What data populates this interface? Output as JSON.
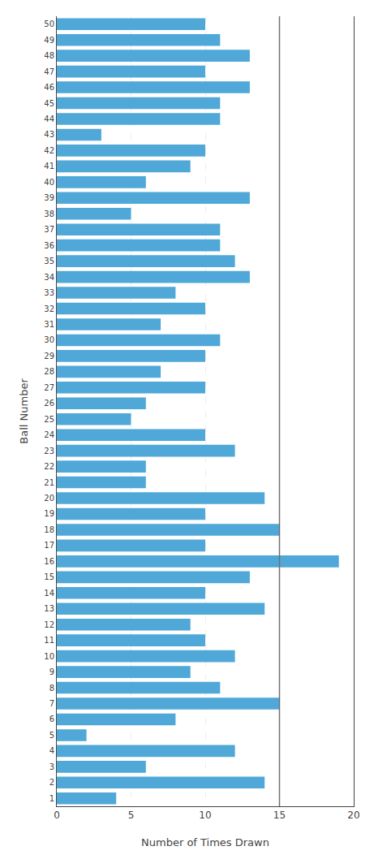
{
  "chart_data": {
    "type": "bar",
    "orientation": "horizontal",
    "xlabel": "Number of Times Drawn",
    "ylabel": "Ball Number",
    "categories": [
      1,
      2,
      3,
      4,
      5,
      6,
      7,
      8,
      9,
      10,
      11,
      12,
      13,
      14,
      15,
      16,
      17,
      18,
      19,
      20,
      21,
      22,
      23,
      24,
      25,
      26,
      27,
      28,
      29,
      30,
      31,
      32,
      33,
      34,
      35,
      36,
      37,
      38,
      39,
      40,
      41,
      42,
      43,
      44,
      45,
      46,
      47,
      48,
      49,
      50
    ],
    "values": [
      4,
      14,
      6,
      12,
      2,
      8,
      15,
      11,
      9,
      12,
      10,
      9,
      14,
      10,
      13,
      19,
      10,
      15,
      10,
      14,
      6,
      6,
      12,
      10,
      5,
      6,
      10,
      7,
      10,
      11,
      7,
      10,
      8,
      13,
      12,
      11,
      11,
      5,
      13,
      6,
      9,
      10,
      3,
      11,
      11,
      13,
      10,
      13,
      11,
      10
    ],
    "color": "#4fa8d8",
    "xlim": [
      0,
      20
    ],
    "xticks": [
      0,
      5,
      10,
      15,
      20
    ],
    "ylim": [
      0.5,
      50.5
    ],
    "yticks": [
      1,
      2,
      3,
      4,
      5,
      6,
      7,
      8,
      9,
      10,
      11,
      12,
      13,
      14,
      15,
      16,
      17,
      18,
      19,
      20,
      21,
      22,
      23,
      24,
      25,
      26,
      27,
      28,
      29,
      30,
      31,
      32,
      33,
      34,
      35,
      36,
      37,
      38,
      39,
      40,
      41,
      42,
      43,
      44,
      45,
      46,
      47,
      48,
      49,
      50
    ],
    "grid": true,
    "vline": {
      "value": 15,
      "color": "#707070"
    }
  }
}
